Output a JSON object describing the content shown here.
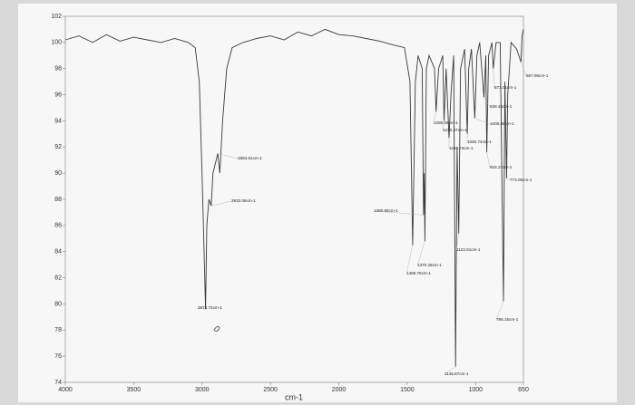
{
  "chart_data": {
    "type": "line",
    "x_label": "cm-1",
    "x": [
      4000,
      3900,
      3800,
      3700,
      3600,
      3500,
      3400,
      3300,
      3200,
      3100,
      3050,
      3020,
      3000,
      2985,
      2974.72,
      2965,
      2950,
      2933.06,
      2920,
      2884.61,
      2870,
      2850,
      2820,
      2780,
      2700,
      2600,
      2500,
      2400,
      2300,
      2200,
      2100,
      2000,
      1900,
      1800,
      1700,
      1600,
      1520,
      1480,
      1459.76,
      1440,
      1420,
      1390,
      1380.69,
      1375,
      1370.28,
      1360,
      1340,
      1300,
      1289.09,
      1270,
      1240,
      1230.47,
      1215,
      1193.74,
      1180,
      1160,
      1145.87,
      1135,
      1122.81,
      1110,
      1080,
      1060.74,
      1050,
      1030,
      1005.86,
      990,
      970,
      938.45,
      925,
      918.27,
      905,
      880,
      871.01,
      850,
      820,
      796.15,
      785,
      773.06,
      765,
      740,
      700,
      667.96,
      660,
      650
    ],
    "series": [
      {
        "color": "#3a3a3a",
        "values": [
          100.2,
          100.5,
          100,
          100.6,
          100.1,
          100.4,
          100.2,
          100,
          100.3,
          100,
          99.6,
          97,
          90,
          84,
          79.6,
          86,
          88,
          87.5,
          90,
          91.5,
          90,
          94,
          98,
          99.6,
          100,
          100.3,
          100.5,
          100.2,
          100.8,
          100.5,
          101,
          100.6,
          100.5,
          100.3,
          100.1,
          99.8,
          99.6,
          97,
          84.5,
          97,
          99,
          98,
          86.8,
          90,
          84.8,
          98,
          99,
          98,
          94.7,
          98,
          99,
          94,
          98,
          92.7,
          96,
          99,
          75.2,
          92,
          85.4,
          98,
          99.5,
          93,
          98,
          99.5,
          94.2,
          99,
          100,
          95.8,
          99,
          91.6,
          99,
          100,
          98,
          100,
          100,
          80.2,
          97,
          89.6,
          96,
          100,
          99.5,
          98.5,
          100.5,
          101
        ]
      }
    ],
    "xlim": [
      4000,
      650
    ],
    "ylim": [
      74,
      102
    ],
    "xticks": [
      4000,
      3500,
      3000,
      2500,
      2000,
      1500,
      1000,
      650
    ],
    "yticks": [
      74,
      76,
      78,
      80,
      82,
      84,
      86,
      88,
      90,
      92,
      94,
      96,
      98,
      100,
      102
    ],
    "annotations": [
      {
        "text": "2974.72cm-1",
        "x": 2974.72,
        "y": 79.6
      },
      {
        "text": "2933.06cm-1",
        "x": 2933.06,
        "y": 87.5
      },
      {
        "text": "2884.61cm-1",
        "x": 2884.61,
        "y": 91.5
      },
      {
        "text": "1380.69cm-1",
        "x": 1380.69,
        "y": 86.8
      },
      {
        "text": "1370.28cm-1",
        "x": 1370.28,
        "y": 84.8
      },
      {
        "text": "1459.76cm-1",
        "x": 1459.76,
        "y": 84.5
      },
      {
        "text": "1289.09cm-1",
        "x": 1289.09,
        "y": 94.7
      },
      {
        "text": "1230.47cm-1",
        "x": 1230.47,
        "y": 94
      },
      {
        "text": "1193.74cm-1",
        "x": 1193.74,
        "y": 92.7
      },
      {
        "text": "1145.87cm-1",
        "x": 1145.87,
        "y": 75.2
      },
      {
        "text": "1122.81cm-1",
        "x": 1122.81,
        "y": 85.4
      },
      {
        "text": "1060.74cm-1",
        "x": 1060.74,
        "y": 93
      },
      {
        "text": "1005.86cm-1",
        "x": 1005.86,
        "y": 94.2
      },
      {
        "text": "938.45cm-1",
        "x": 938.45,
        "y": 95.8
      },
      {
        "text": "918.27cm-1",
        "x": 918.27,
        "y": 91.6
      },
      {
        "text": "871.01cm-1",
        "x": 871.01,
        "y": 98
      },
      {
        "text": "796.15cm-1",
        "x": 796.15,
        "y": 80.2
      },
      {
        "text": "773.06cm-1",
        "x": 773.06,
        "y": 89.6
      },
      {
        "text": "667.96cm-1",
        "x": 667.96,
        "y": 98.5
      }
    ]
  }
}
